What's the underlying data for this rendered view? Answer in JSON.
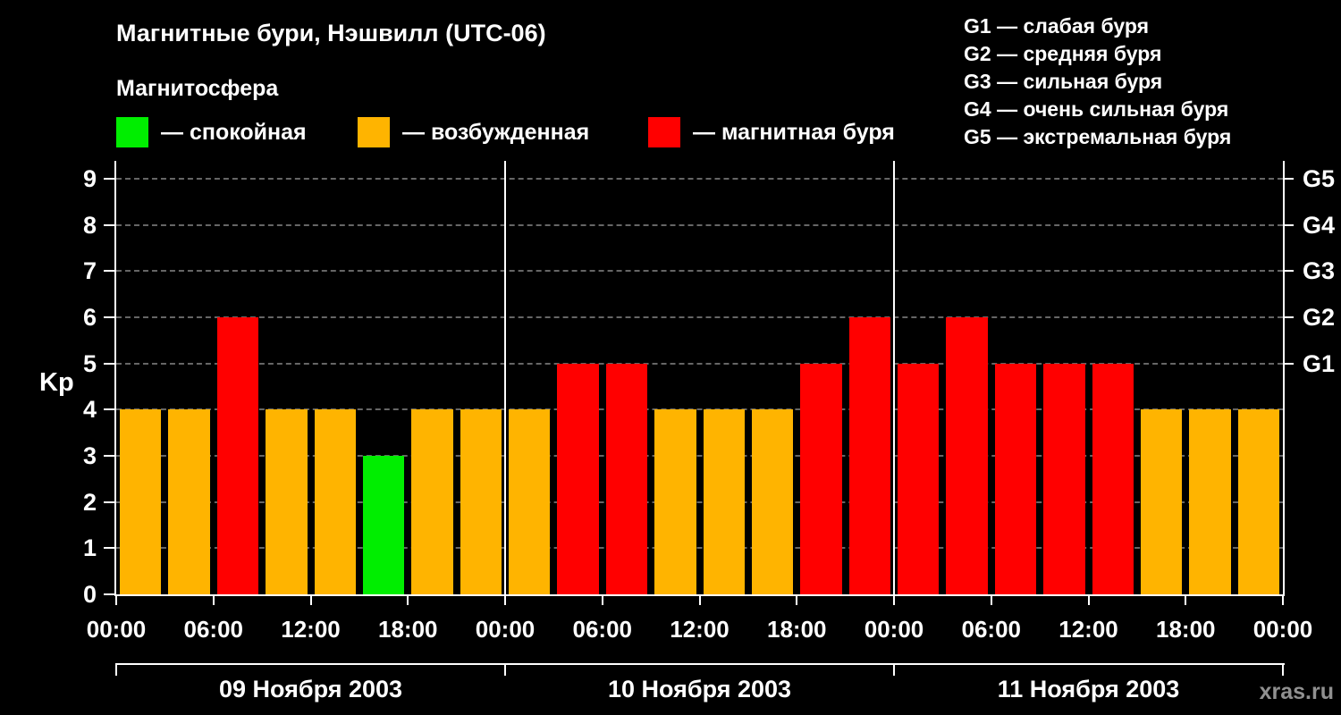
{
  "header": {
    "title": "Магнитные бури, Нэшвилл (UTC-06)",
    "magnetosphere_label": "Магнитосфера",
    "legend": [
      {
        "name": "quiet",
        "color": "#00ee00",
        "label": "— спокойная"
      },
      {
        "name": "excited",
        "color": "#ffb400",
        "label": "— возбужденная"
      },
      {
        "name": "storm",
        "color": "#ff0000",
        "label": "— магнитная буря"
      }
    ],
    "g_scale": [
      {
        "code": "G1",
        "desc": "— слабая буря"
      },
      {
        "code": "G2",
        "desc": "— средняя буря"
      },
      {
        "code": "G3",
        "desc": "— сильная буря"
      },
      {
        "code": "G4",
        "desc": "— очень сильная буря"
      },
      {
        "code": "G5",
        "desc": "— экстремальная буря"
      }
    ]
  },
  "watermark": "xras.ru",
  "chart_data": {
    "type": "bar",
    "title": "Магнитные бури, Нэшвилл (UTC-06)",
    "ylabel": "Kp",
    "ylim": [
      0,
      9
    ],
    "yticks": [
      0,
      1,
      2,
      3,
      4,
      5,
      6,
      7,
      8,
      9
    ],
    "grid": "horizontal-dashed",
    "legend_position": "top",
    "bar_interval_hours": 3,
    "colors": {
      "quiet": "#00ee00",
      "excited": "#ffb400",
      "storm": "#ff0000"
    },
    "right_axis_labels": [
      {
        "value": 5,
        "label": "G1"
      },
      {
        "value": 6,
        "label": "G2"
      },
      {
        "value": 7,
        "label": "G3"
      },
      {
        "value": 8,
        "label": "G4"
      },
      {
        "value": 9,
        "label": "G5"
      }
    ],
    "x_tick_labels": [
      "00:00",
      "06:00",
      "12:00",
      "18:00",
      "00:00",
      "06:00",
      "12:00",
      "18:00",
      "00:00",
      "06:00",
      "12:00",
      "18:00",
      "00:00"
    ],
    "days": [
      {
        "date": "09 Ноября 2003",
        "values": [
          4,
          4,
          6,
          4,
          4,
          3,
          4,
          4
        ],
        "status": [
          "excited",
          "excited",
          "storm",
          "excited",
          "excited",
          "quiet",
          "excited",
          "excited"
        ]
      },
      {
        "date": "10 Ноября 2003",
        "values": [
          4,
          5,
          5,
          4,
          4,
          4,
          5,
          6
        ],
        "status": [
          "excited",
          "storm",
          "storm",
          "excited",
          "excited",
          "excited",
          "storm",
          "storm"
        ]
      },
      {
        "date": "11 Ноября 2003",
        "values": [
          5,
          6,
          5,
          5,
          5,
          4,
          4,
          4
        ],
        "status": [
          "storm",
          "storm",
          "storm",
          "storm",
          "storm",
          "excited",
          "excited",
          "excited"
        ]
      }
    ]
  }
}
